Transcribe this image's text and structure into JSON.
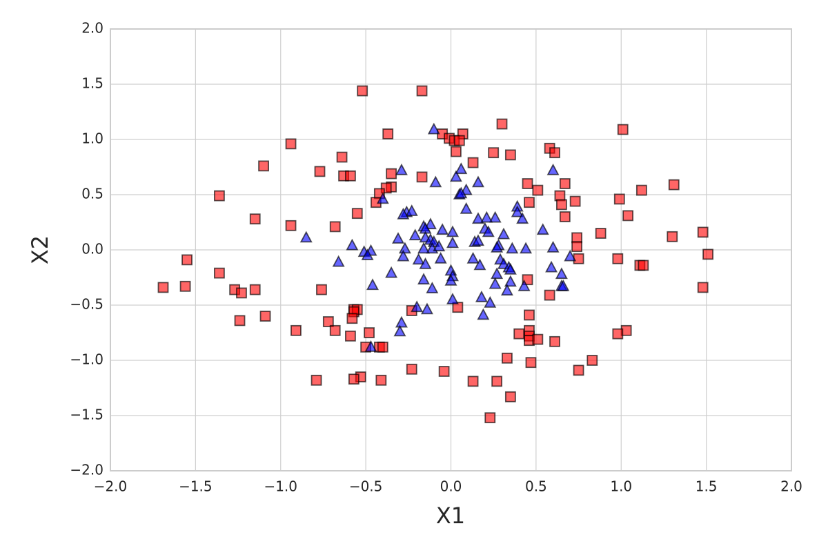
{
  "chart_data": {
    "type": "scatter",
    "xlabel": "X1",
    "ylabel": "X2",
    "xlim": [
      -2,
      2
    ],
    "ylim": [
      -2,
      2
    ],
    "xticks": [
      {
        "value": -2,
        "label": "−2.0"
      },
      {
        "value": -1.5,
        "label": "−1.5"
      },
      {
        "value": -1,
        "label": "−1.0"
      },
      {
        "value": -0.5,
        "label": "−0.5"
      },
      {
        "value": 0,
        "label": "0.0"
      },
      0.5,
      {
        "value": 1,
        "label": "1.0"
      },
      1.5,
      {
        "value": 2,
        "label": "2.0"
      }
    ],
    "yticks": [
      {
        "value": -2,
        "label": "−2.0"
      },
      {
        "value": -1.5,
        "label": "−1.5"
      },
      {
        "value": -1,
        "label": "−1.0"
      },
      {
        "value": -0.5,
        "label": "−0.5"
      },
      {
        "value": 0,
        "label": "0.0"
      },
      0.5,
      {
        "value": 1,
        "label": "1.0"
      },
      1.5,
      {
        "value": 2,
        "label": "2.0"
      }
    ],
    "grid": true,
    "series": [
      {
        "color": "#ff0000",
        "marker": "s",
        "x": [
          -0.52,
          -0.17,
          0.3,
          1.01,
          -0.37,
          -0.05,
          0.07,
          -0.01,
          0.02,
          0.05,
          -0.94,
          0.58,
          0.61,
          0.03,
          0.25,
          0.35,
          -0.64,
          0.13,
          -1.1,
          -0.77,
          -0.35,
          -0.63,
          -0.59,
          -0.17,
          1.31,
          0.45,
          0.67,
          0.51,
          1.12,
          -0.35,
          -0.38,
          -0.42,
          -1.36,
          0.64,
          -0.44,
          0.99,
          0.46,
          0.73,
          0.65,
          1.04,
          0.67,
          -1.15,
          -0.55,
          -0.94,
          -0.68,
          0.88,
          1.48,
          1.3,
          0.74,
          0.74,
          -1.55,
          0.75,
          0.98,
          1.51,
          1.11,
          1.13,
          -1.36,
          0.45,
          -1.69,
          -1.56,
          1.48,
          -1.27,
          -1.23,
          -1.15,
          -0.76,
          0.58,
          -0.57,
          -0.55,
          0.04,
          -0.57,
          -0.23,
          -0.58,
          0.46,
          -1.09,
          -1.24,
          -0.72,
          -0.68,
          -0.91,
          0.46,
          1.03,
          0.98,
          0.4,
          -0.59,
          -0.48,
          0.46,
          0.46,
          0.51,
          0.61,
          -0.5,
          -0.42,
          -0.4,
          0.33,
          0.83,
          0.47,
          -0.23,
          0.75,
          -0.04,
          -0.53,
          -0.79,
          -0.57,
          -0.41,
          0.13,
          0.27,
          0.35,
          0.23
        ],
        "values": [
          1.44,
          1.44,
          1.14,
          1.09,
          1.05,
          1.05,
          1.05,
          1.01,
          0.99,
          0.99,
          0.96,
          0.92,
          0.88,
          0.89,
          0.88,
          0.86,
          0.84,
          0.79,
          0.76,
          0.71,
          0.69,
          0.67,
          0.67,
          0.66,
          0.59,
          0.6,
          0.6,
          0.54,
          0.54,
          0.57,
          0.56,
          0.51,
          0.49,
          0.49,
          0.43,
          0.46,
          0.43,
          0.44,
          0.41,
          0.31,
          0.3,
          0.28,
          0.33,
          0.22,
          0.21,
          0.15,
          0.16,
          0.12,
          0.11,
          0.03,
          -0.09,
          -0.08,
          -0.08,
          -0.04,
          -0.14,
          -0.14,
          -0.21,
          -0.27,
          -0.34,
          -0.33,
          -0.34,
          -0.36,
          -0.39,
          -0.36,
          -0.36,
          -0.41,
          -0.54,
          -0.54,
          -0.52,
          -0.56,
          -0.55,
          -0.62,
          -0.59,
          -0.6,
          -0.64,
          -0.65,
          -0.73,
          -0.73,
          -0.73,
          -0.73,
          -0.76,
          -0.76,
          -0.78,
          -0.75,
          -0.78,
          -0.82,
          -0.81,
          -0.83,
          -0.88,
          -0.88,
          -0.88,
          -0.98,
          -1.0,
          -1.02,
          -1.08,
          -1.09,
          -1.1,
          -1.15,
          -1.18,
          -1.17,
          -1.18,
          -1.19,
          -1.19,
          -1.33,
          -1.52
        ]
      },
      {
        "color": "#0000ff",
        "marker": "^",
        "x": [
          -0.1,
          0.06,
          -0.29,
          0.6,
          0.03,
          -0.09,
          0.16,
          0.09,
          0.05,
          0.06,
          -0.4,
          0.39,
          0.09,
          -0.26,
          -0.23,
          0.39,
          -0.28,
          0.26,
          0.16,
          0.21,
          0.42,
          -0.12,
          -0.16,
          -0.15,
          0.2,
          0.22,
          -0.05,
          0.01,
          0.54,
          0.31,
          -0.85,
          -0.31,
          -0.21,
          -0.15,
          -0.58,
          -0.12,
          0.14,
          0.16,
          -0.1,
          0.01,
          0.28,
          0.36,
          0.44,
          0.6,
          -0.27,
          -0.11,
          -0.07,
          -0.51,
          -0.47,
          -0.16,
          0.27,
          0.7,
          -0.49,
          -0.28,
          0.13,
          -0.19,
          -0.06,
          -0.66,
          0.29,
          -0.15,
          0.17,
          0.31,
          0.34,
          0.59,
          -0.35,
          0.0,
          0.35,
          0.27,
          0.65,
          0.01,
          -0.16,
          0.0,
          0.35,
          0.26,
          0.43,
          0.65,
          0.66,
          -0.46,
          -0.11,
          0.33,
          0.01,
          0.18,
          0.23,
          -0.2,
          -0.14,
          -0.29,
          0.19,
          -0.3,
          -0.47
        ],
        "values": [
          1.09,
          0.73,
          0.72,
          0.72,
          0.66,
          0.61,
          0.61,
          0.54,
          0.5,
          0.51,
          0.46,
          0.39,
          0.37,
          0.34,
          0.35,
          0.34,
          0.32,
          0.29,
          0.28,
          0.29,
          0.28,
          0.23,
          0.21,
          0.19,
          0.19,
          0.16,
          0.18,
          0.16,
          0.18,
          0.14,
          0.11,
          0.1,
          0.13,
          0.11,
          0.04,
          0.09,
          0.07,
          0.08,
          0.07,
          0.06,
          0.04,
          0.01,
          0.01,
          0.02,
          0.01,
          0.01,
          0.03,
          -0.02,
          -0.01,
          0.01,
          0.02,
          -0.06,
          -0.05,
          -0.06,
          -0.08,
          -0.09,
          -0.08,
          -0.11,
          -0.09,
          -0.13,
          -0.14,
          -0.13,
          -0.16,
          -0.16,
          -0.21,
          -0.19,
          -0.18,
          -0.22,
          -0.22,
          -0.24,
          -0.27,
          -0.28,
          -0.29,
          -0.31,
          -0.33,
          -0.33,
          -0.33,
          -0.32,
          -0.35,
          -0.37,
          -0.45,
          -0.43,
          -0.48,
          -0.52,
          -0.54,
          -0.66,
          -0.59,
          -0.74,
          -0.88
        ]
      }
    ]
  }
}
